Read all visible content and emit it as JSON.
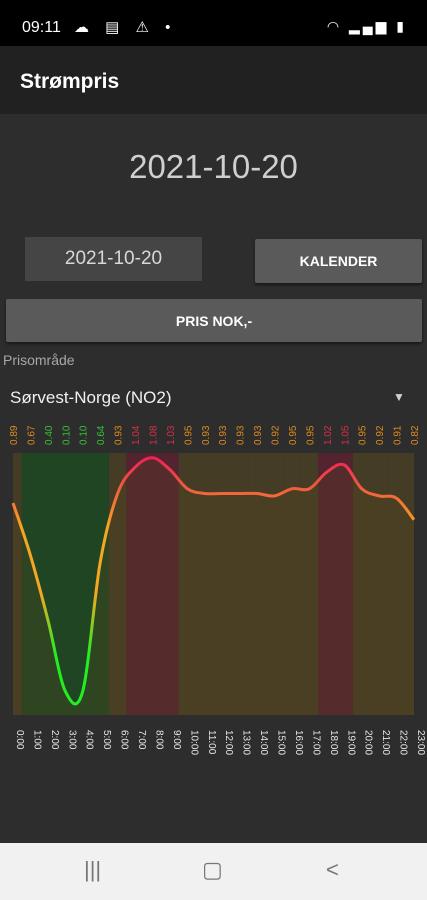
{
  "status_bar": {
    "time": "09:11",
    "left_icons": [
      "cloud-icon",
      "sim-card-icon",
      "warning-icon",
      "dot-icon"
    ],
    "left_glyphs": "☁ ▤ ⚠ •",
    "right_icons": [
      "wifi-icon",
      "signal-icon",
      "battery-icon"
    ],
    "right_glyphs": "◠ ▂▄▆ ▮"
  },
  "app_bar": {
    "title": "Strømpris"
  },
  "main": {
    "date_heading": "2021-10-20",
    "date_field": "2021-10-20",
    "calendar_button": "KALENDER",
    "price_button": "PRIS NOK,-",
    "region_label": "Prisområde",
    "region_value": "Sørvest-Norge (NO2)"
  },
  "chart_data": {
    "type": "area",
    "x": [
      "0:00",
      "1:00",
      "2:00",
      "3:00",
      "4:00",
      "5:00",
      "6:00",
      "7:00",
      "8:00",
      "9:00",
      "10:00",
      "11:00",
      "12:00",
      "13:00",
      "14:00",
      "15:00",
      "16:00",
      "17:00",
      "18:00",
      "19:00",
      "20:00",
      "21:00",
      "22:00",
      "23:00"
    ],
    "x_tick_labels": [
      "0:00",
      "1:00",
      "2:00",
      "3:00",
      "4:00",
      "5:00",
      "6:00",
      "7:00",
      "8:00",
      "9:00",
      "10:00",
      "11:00",
      "12:00",
      "13:00",
      "14:00",
      "15:00",
      "16:00",
      "17:00",
      "18:00",
      "19:00",
      "20:00",
      "21:00",
      "22:00",
      "23:00"
    ],
    "values": [
      0.89,
      0.67,
      0.4,
      0.1,
      0.1,
      0.64,
      0.93,
      1.04,
      1.08,
      1.03,
      0.95,
      0.93,
      0.93,
      0.93,
      0.93,
      0.92,
      0.95,
      0.95,
      1.02,
      1.05,
      0.95,
      0.92,
      0.91,
      0.82
    ],
    "value_labels": [
      "0.89",
      "0.67",
      "0.40",
      "0.10",
      "0.10",
      "0.64",
      "0.93",
      "1.04",
      "1.08",
      "1.03",
      "0.95",
      "0.93",
      "0.93",
      "0.93",
      "0.93",
      "0.92",
      "0.95",
      "0.95",
      "1.02",
      "1.05",
      "0.95",
      "0.92",
      "0.91",
      "0.82"
    ],
    "label_colors": [
      "#e08b1c",
      "#e08b1c",
      "#36c436",
      "#36c436",
      "#36c436",
      "#36c436",
      "#e08b1c",
      "#d9304a",
      "#d9304a",
      "#d9304a",
      "#e08b1c",
      "#e08b1c",
      "#e08b1c",
      "#e08b1c",
      "#e08b1c",
      "#e08b1c",
      "#e08b1c",
      "#e08b1c",
      "#d9304a",
      "#d9304a",
      "#e08b1c",
      "#e08b1c",
      "#e08b1c",
      "#e08b1c"
    ],
    "ylim": [
      0.0,
      1.1
    ],
    "colors": {
      "low": "#22ee22",
      "mid": "#f5a623",
      "high": "#ee2255",
      "fill": "#4a3f24"
    },
    "grid": false
  },
  "nav_bar": {
    "recent_icon": "recent-apps-icon",
    "home_icon": "home-icon",
    "back_icon": "back-icon"
  }
}
